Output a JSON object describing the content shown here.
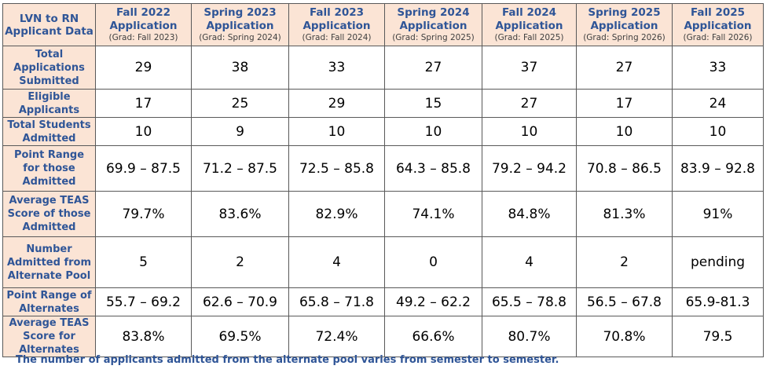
{
  "corner": "LVN to RN Applicant Data",
  "columns": [
    {
      "title": "Fall 2022 Application",
      "sub": "(Grad: Fall 2023)"
    },
    {
      "title": "Spring 2023 Application",
      "sub": "(Grad: Spring 2024)"
    },
    {
      "title": "Fall 2023 Application",
      "sub": "(Grad: Fall 2024)"
    },
    {
      "title": "Spring 2024 Application",
      "sub": "(Grad: Spring 2025)"
    },
    {
      "title": "Fall 2024 Application",
      "sub": "(Grad: Fall 2025)"
    },
    {
      "title": "Spring 2025 Application",
      "sub": "(Grad: Spring 2026)"
    },
    {
      "title": "Fall 2025 Application",
      "sub": "(Grad: Fall 2026)"
    }
  ],
  "rows": [
    {
      "label": "Total Applications Submitted",
      "cells": [
        "29",
        "38",
        "33",
        "27",
        "37",
        "27",
        "33"
      ]
    },
    {
      "label": "Eligible Applicants",
      "cells": [
        "17",
        "25",
        "29",
        "15",
        "27",
        "17",
        "24"
      ]
    },
    {
      "label": "Total Students Admitted",
      "cells": [
        "10",
        "9",
        "10",
        "10",
        "10",
        "10",
        "10"
      ]
    },
    {
      "label": "Point Range for those Admitted",
      "cells": [
        "69.9 – 87.5",
        "71.2 – 87.5",
        "72.5 – 85.8",
        "64.3 – 85.8",
        "79.2 – 94.2",
        "70.8 – 86.5",
        "83.9 – 92.8"
      ]
    },
    {
      "label": "Average TEAS Score of those Admitted",
      "cells": [
        "79.7%",
        "83.6%",
        "82.9%",
        "74.1%",
        "84.8%",
        "81.3%",
        "91%"
      ]
    },
    {
      "label": "Number Admitted from Alternate Pool",
      "cells": [
        "5",
        "2",
        "4",
        "0",
        "4",
        "2",
        "pending"
      ]
    },
    {
      "label": "Point Range of Alternates",
      "cells": [
        "55.7 – 69.2",
        "62.6 – 70.9",
        "65.8 – 71.8",
        "49.2 – 62.2",
        "65.5 – 78.8",
        "56.5 – 67.8",
        "65.9-81.3"
      ]
    },
    {
      "label": "Average TEAS Score for Alternates",
      "cells": [
        "83.8%",
        "69.5%",
        "72.4%",
        "66.6%",
        "80.7%",
        "70.8%",
        "79.5"
      ]
    }
  ],
  "footnote": "The number of applicants admitted from the alternate pool varies from semester to semester."
}
